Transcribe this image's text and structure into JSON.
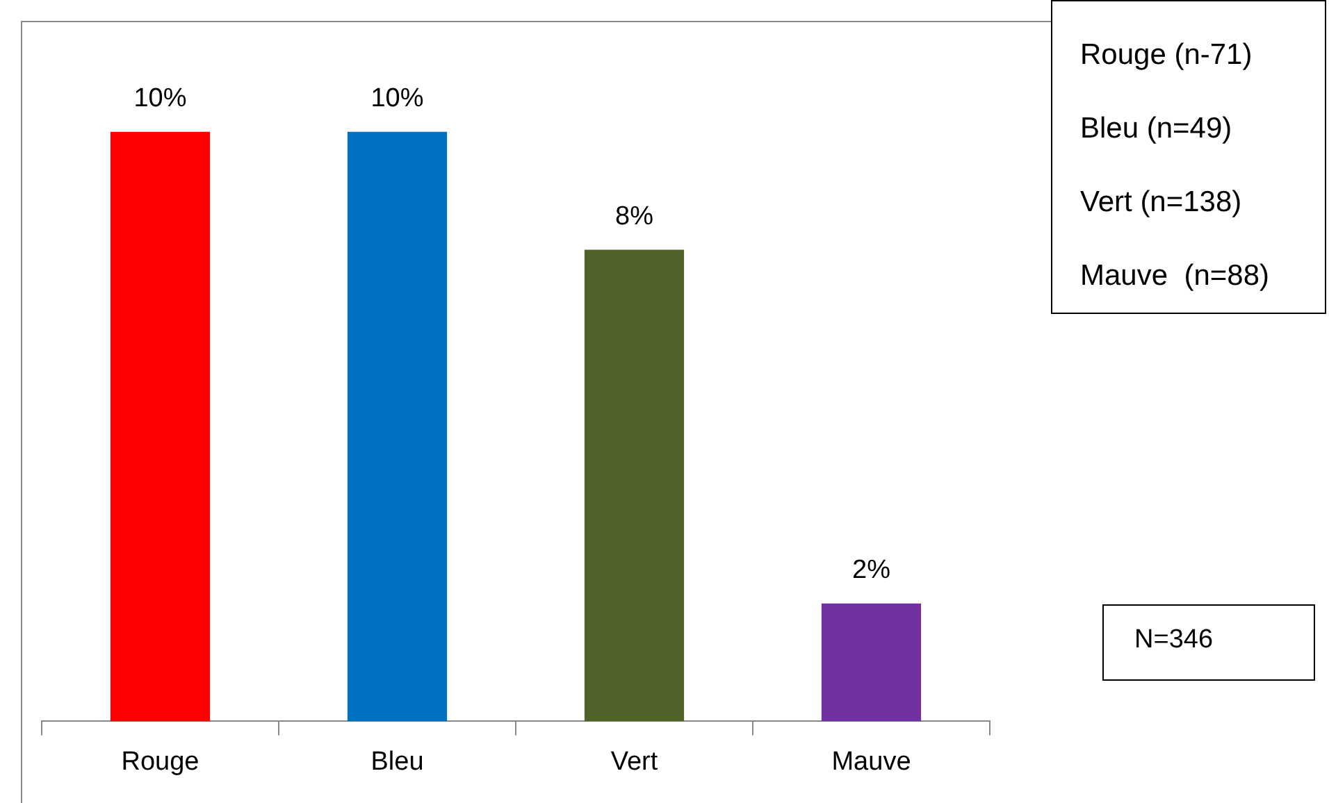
{
  "chart_data": {
    "type": "bar",
    "categories": [
      "Rouge",
      "Bleu",
      "Vert",
      "Mauve"
    ],
    "values": [
      10,
      10,
      8,
      2
    ],
    "colors": [
      "#ff0000",
      "#0070c0",
      "#4f6228",
      "#7030a0"
    ],
    "value_labels": [
      "10%",
      "10%",
      "8%",
      "2%"
    ],
    "annotations": [
      "Rouge (n-71)",
      "Bleu (n=49)",
      "Vert (n=138)",
      "Mauve  (n=88)",
      "N=346"
    ],
    "grid": false,
    "legend": false
  }
}
